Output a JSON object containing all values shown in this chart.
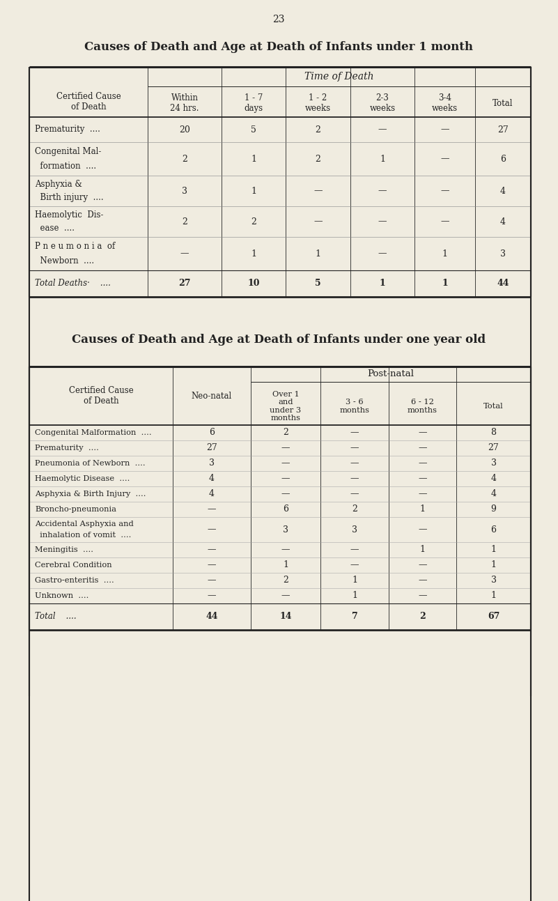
{
  "page_number": "23",
  "bg_color": "#f0ece0",
  "title1": "Causes of Death and Age at Death of Infants under 1 month",
  "title2": "Causes of Death and Age at Death of Infants under one year old",
  "t1_header": "Time of Death",
  "t1_cols": [
    "Within\n24 hrs.",
    "1 - 7\ndays",
    "1 - 2\nweeks",
    "2-3\nweeks",
    "3-4\nweeks",
    "Total"
  ],
  "t1_rows": [
    {
      "label1": "Prematurity",
      "label2": "",
      "label3": "....",
      "vals": [
        "20",
        "5",
        "2",
        "—",
        "—",
        "27"
      ]
    },
    {
      "label1": "Congenital Mal-",
      "label2": "  formation",
      "label3": "....",
      "vals": [
        "2",
        "1",
        "2",
        "1",
        "—",
        "6"
      ]
    },
    {
      "label1": "Asphyxia &",
      "label2": "  Birth injury",
      "label3": "....",
      "vals": [
        "3",
        "1",
        "—",
        "—",
        "—",
        "4"
      ]
    },
    {
      "label1": "Haemolytic  Dis-",
      "label2": "  ease",
      "label3": "....",
      "vals": [
        "2",
        "2",
        "—",
        "—",
        "—",
        "4"
      ]
    },
    {
      "label1": "P n e u m o n i a  of",
      "label2": "  Newborn",
      "label3": "....",
      "vals": [
        "—",
        "1",
        "1",
        "—",
        "1",
        "3"
      ]
    }
  ],
  "t1_foot_label": "Total Deaths·",
  "t1_foot_dots": "....",
  "t1_foot_vals": [
    "27",
    "10",
    "5",
    "1",
    "1",
    "44"
  ],
  "t2_postnatal": "Post-natal",
  "t2_neonatal": "Neo-natal",
  "t2_cols": [
    "Over 1\nand\nunder 3\nmonths",
    "3 - 6\nmonths",
    "6 - 12\nmonths",
    "Total"
  ],
  "t2_rows": [
    {
      "label1": "Congenital Malformation",
      "label2": "....",
      "vals": [
        "6",
        "2",
        "—",
        "—",
        "8"
      ]
    },
    {
      "label1": "Prematurity",
      "label2": "....",
      "vals": [
        "27",
        "—",
        "—",
        "—",
        "27"
      ]
    },
    {
      "label1": "Pneumonia of Newborn",
      "label2": "....",
      "vals": [
        "3",
        "—",
        "—",
        "—",
        "3"
      ]
    },
    {
      "label1": "Haemolytic Disease",
      "label2": "....",
      "vals": [
        "4",
        "—",
        "—",
        "—",
        "4"
      ]
    },
    {
      "label1": "Asphyxia & Birth Injury",
      "label2": "....",
      "vals": [
        "4",
        "—",
        "—",
        "—",
        "4"
      ]
    },
    {
      "label1": "Broncho-pneumonia",
      "label2": "",
      "vals": [
        "—",
        "6",
        "2",
        "1",
        "9"
      ]
    },
    {
      "label1": "Accidental Asphyxia and",
      "label2": "  inhalation of vomit",
      "label3": "....",
      "vals": [
        "—",
        "3",
        "3",
        "—",
        "6"
      ]
    },
    {
      "label1": "Meningitis",
      "label2": "....",
      "vals": [
        "—",
        "—",
        "—",
        "1",
        "1"
      ]
    },
    {
      "label1": "Cerebral Condition",
      "label2": "",
      "vals": [
        "—",
        "1",
        "—",
        "—",
        "1"
      ]
    },
    {
      "label1": "Gastro-enteritis",
      "label2": "....",
      "vals": [
        "—",
        "2",
        "1",
        "—",
        "3"
      ]
    },
    {
      "label1": "Unknown",
      "label2": "....",
      "vals": [
        "—",
        "—",
        "1",
        "—",
        "1"
      ]
    }
  ],
  "t2_foot_label": "Total",
  "t2_foot_dots": "....",
  "t2_foot_vals": [
    "44",
    "14",
    "7",
    "2",
    "67"
  ]
}
